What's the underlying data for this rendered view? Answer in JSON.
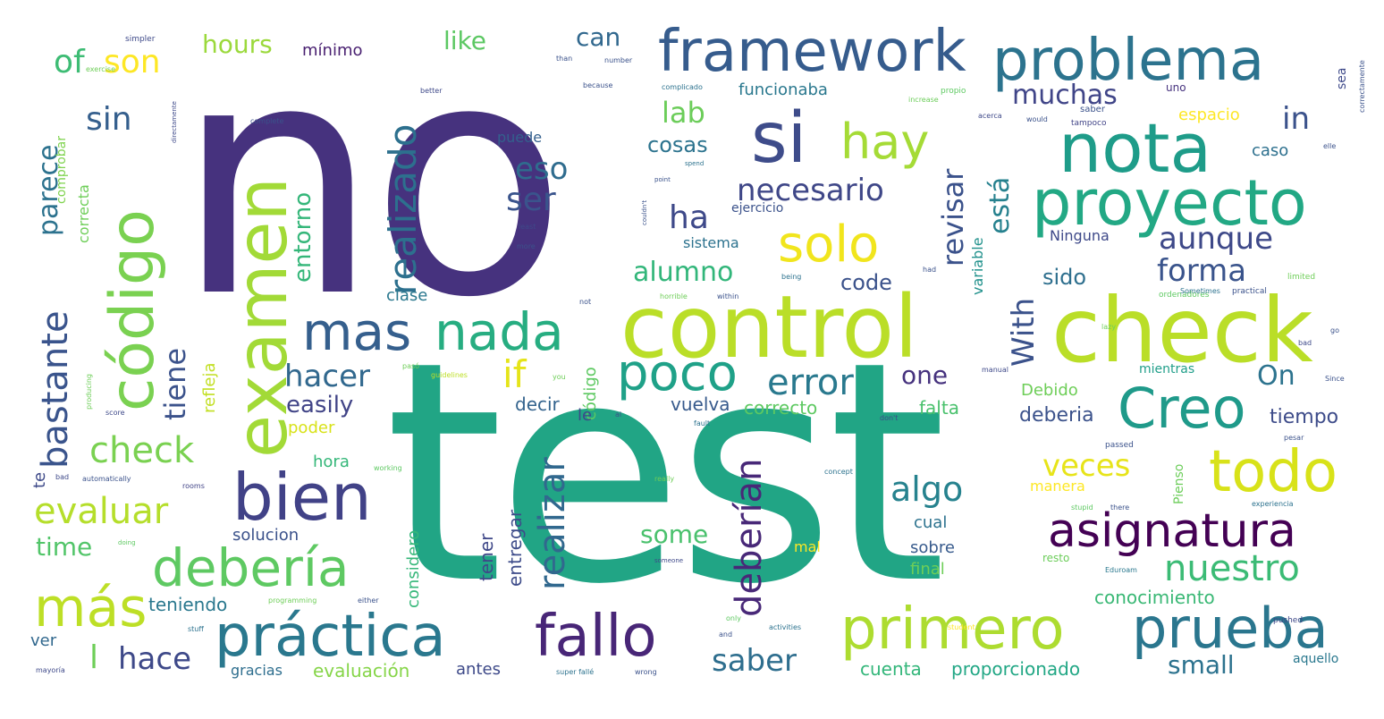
{
  "words": [
    {
      "text": "no",
      "color": "#46327e"
    },
    {
      "text": "test",
      "color": "#21a585"
    },
    {
      "text": "control",
      "color": "#bade28"
    },
    {
      "text": "check",
      "color": "#bade28"
    },
    {
      "text": "examen",
      "color": "#a2da37"
    },
    {
      "text": "código",
      "color": "#7ad151"
    },
    {
      "text": "framework",
      "color": "#365c8d"
    },
    {
      "text": "problema",
      "color": "#2c738e"
    },
    {
      "text": "nota",
      "color": "#1e9c89"
    },
    {
      "text": "proyecto",
      "color": "#22a884"
    },
    {
      "text": "si",
      "color": "#3e4c8a"
    },
    {
      "text": "hay",
      "color": "#a5db36"
    },
    {
      "text": "solo",
      "color": "#f1e51d"
    },
    {
      "text": "bien",
      "color": "#414287"
    },
    {
      "text": "mas",
      "color": "#355f8d"
    },
    {
      "text": "nada",
      "color": "#27ad81"
    },
    {
      "text": "poco",
      "color": "#1fa188"
    },
    {
      "text": "Creo",
      "color": "#1f9a8a"
    },
    {
      "text": "todo",
      "color": "#d8e219"
    },
    {
      "text": "asignatura",
      "color": "#440154"
    },
    {
      "text": "debería",
      "color": "#5ec962"
    },
    {
      "text": "más",
      "color": "#bddf26"
    },
    {
      "text": "práctica",
      "color": "#2a788e"
    },
    {
      "text": "fallo",
      "color": "#482677"
    },
    {
      "text": "primero",
      "color": "#addc30"
    },
    {
      "text": "prueba",
      "color": "#2a768e"
    },
    {
      "text": "nuestro",
      "color": "#3bbb75"
    },
    {
      "text": "evaluar",
      "color": "#b5de2b"
    },
    {
      "text": "check",
      "color": "#7ad151"
    },
    {
      "text": "realizado",
      "color": "#2d708e"
    },
    {
      "text": "realizar",
      "color": "#31688e"
    },
    {
      "text": "deberían",
      "color": "#482878"
    },
    {
      "text": "bastante",
      "color": "#3a548c"
    },
    {
      "text": "parece",
      "color": "#2c728e"
    },
    {
      "text": "tiene",
      "color": "#3b528b"
    },
    {
      "text": "muchas",
      "color": "#404588"
    },
    {
      "text": "aunque",
      "color": "#3e4989"
    },
    {
      "text": "forma",
      "color": "#3a548c"
    },
    {
      "text": "error",
      "color": "#29798e"
    },
    {
      "text": "hacer",
      "color": "#31688e"
    },
    {
      "text": "algo",
      "color": "#26828e"
    },
    {
      "text": "veces",
      "color": "#e7e419"
    },
    {
      "text": "alumno",
      "color": "#32b67a"
    },
    {
      "text": "necesario",
      "color": "#3f4788"
    },
    {
      "text": "ser",
      "color": "#3a548c"
    },
    {
      "text": "eso",
      "color": "#2f6c8e"
    },
    {
      "text": "lab",
      "color": "#6ccd5a"
    },
    {
      "text": "sin",
      "color": "#355f8d"
    },
    {
      "text": "of",
      "color": "#3dbc74"
    },
    {
      "text": "son",
      "color": "#fde725"
    },
    {
      "text": "hours",
      "color": "#9bd93c"
    },
    {
      "text": "like",
      "color": "#5cc863"
    },
    {
      "text": "can",
      "color": "#31688e"
    },
    {
      "text": "in",
      "color": "#3b528b"
    },
    {
      "text": "ha",
      "color": "#3e4989"
    },
    {
      "text": "if",
      "color": "#e5e419"
    },
    {
      "text": "saber",
      "color": "#2e6e8e"
    },
    {
      "text": "small",
      "color": "#2c728e"
    },
    {
      "text": "some",
      "color": "#4ac16d"
    },
    {
      "text": "With",
      "color": "#3b528b"
    },
    {
      "text": "revisar",
      "color": "#3b528b"
    },
    {
      "text": "está",
      "color": "#26818e"
    },
    {
      "text": "hace",
      "color": "#3e4989"
    },
    {
      "text": "l",
      "color": "#6ece58"
    },
    {
      "text": "time",
      "color": "#52c569"
    },
    {
      "text": "On",
      "color": "#2c738e"
    },
    {
      "text": "one",
      "color": "#46327e"
    },
    {
      "text": "tiempo",
      "color": "#3e4c8a"
    },
    {
      "text": "deberia",
      "color": "#3b528b"
    },
    {
      "text": "easily",
      "color": "#414487"
    },
    {
      "text": "entorno",
      "color": "#34b679"
    },
    {
      "text": "cosas",
      "color": "#2c738e"
    },
    {
      "text": "code",
      "color": "#3b528b"
    },
    {
      "text": "sido",
      "color": "#2e6f8e"
    },
    {
      "text": "mínimo",
      "color": "#481f70"
    },
    {
      "text": "teniendo",
      "color": "#2a788e"
    },
    {
      "text": "ver",
      "color": "#31688e"
    },
    {
      "text": "evaluación",
      "color": "#86d549"
    },
    {
      "text": "antes",
      "color": "#3e4a89"
    },
    {
      "text": "cuenta",
      "color": "#33b67a"
    },
    {
      "text": "proporcionado",
      "color": "#22a785"
    },
    {
      "text": "conocimiento",
      "color": "#3ab875"
    },
    {
      "text": "solucion",
      "color": "#3b528b"
    },
    {
      "text": "entregar",
      "color": "#3e4c8a"
    },
    {
      "text": "tener",
      "color": "#3f4889"
    },
    {
      "text": "decir",
      "color": "#33638d"
    },
    {
      "text": "vuelva",
      "color": "#375a8c"
    },
    {
      "text": "correcto",
      "color": "#5ec962"
    },
    {
      "text": "falta",
      "color": "#4ac16d"
    },
    {
      "text": "Debido",
      "color": "#6ece58"
    },
    {
      "text": "hora",
      "color": "#35b779"
    },
    {
      "text": "poder",
      "color": "#d8e219"
    },
    {
      "text": "funcionaba",
      "color": "#2a788e"
    },
    {
      "text": "puede",
      "color": "#34608d"
    },
    {
      "text": "espacio",
      "color": "#fde725"
    },
    {
      "text": "caso",
      "color": "#2d708e"
    },
    {
      "text": "Ninguna",
      "color": "#3e4989"
    },
    {
      "text": "clase",
      "color": "#2a788e"
    },
    {
      "text": "sistema",
      "color": "#2c728e"
    },
    {
      "text": "ejercicio",
      "color": "#3b528b"
    },
    {
      "text": "correcta",
      "color": "#6ece58"
    },
    {
      "text": "comprobar",
      "color": "#7fd34e"
    },
    {
      "text": "refleja",
      "color": "#c2df23"
    },
    {
      "text": "código",
      "color": "#5ec962"
    },
    {
      "text": "considero",
      "color": "#35b779"
    },
    {
      "text": "cual",
      "color": "#2c728e"
    },
    {
      "text": "sobre",
      "color": "#375a8c"
    },
    {
      "text": "final",
      "color": "#6ece58"
    },
    {
      "text": "mal",
      "color": "#fde725"
    },
    {
      "text": "manera",
      "color": "#fde725"
    },
    {
      "text": "le",
      "color": "#3e4989"
    },
    {
      "text": "te",
      "color": "#3e4a89"
    },
    {
      "text": "gracias",
      "color": "#2e6e8e"
    },
    {
      "text": "variable",
      "color": "#21918c"
    },
    {
      "text": "sea",
      "color": "#3e4989"
    },
    {
      "text": "Pienso",
      "color": "#6ccd5a"
    },
    {
      "text": "resto",
      "color": "#6ccd5a"
    },
    {
      "text": "aquello",
      "color": "#2a788e"
    },
    {
      "text": "mientras",
      "color": "#1f9e89"
    },
    {
      "text": "simpler",
      "color": "#3e4989"
    },
    {
      "text": "better",
      "color": "#3e4989"
    },
    {
      "text": "uno",
      "color": "#46327e"
    },
    {
      "text": "saber",
      "color": "#3b528b"
    },
    {
      "text": "propio",
      "color": "#5ec962"
    },
    {
      "text": "because",
      "color": "#3b528b"
    },
    {
      "text": "complicado",
      "color": "#2c728e"
    },
    {
      "text": "increase",
      "color": "#6ccd5a"
    },
    {
      "text": "tampoco",
      "color": "#414487"
    },
    {
      "text": "correctamente",
      "color": "#3b528b"
    },
    {
      "text": "ordenadores",
      "color": "#5ec962"
    },
    {
      "text": "practical",
      "color": "#3b528b"
    },
    {
      "text": "limited",
      "color": "#6ece58"
    },
    {
      "text": "Sometimes",
      "color": "#2c728e"
    },
    {
      "text": "horrible",
      "color": "#6ece58"
    },
    {
      "text": "within",
      "color": "#3b528b"
    },
    {
      "text": "producing",
      "color": "#6ece58"
    },
    {
      "text": "score",
      "color": "#3e4989"
    },
    {
      "text": "guidelines",
      "color": "#bddf26"
    },
    {
      "text": "mayoría",
      "color": "#3e4989"
    },
    {
      "text": "super fallé",
      "color": "#2c728e"
    },
    {
      "text": "wrong",
      "color": "#3b528b"
    },
    {
      "text": "activities",
      "color": "#2c728e"
    },
    {
      "text": "student",
      "color": "#fde725"
    },
    {
      "text": "pushed",
      "color": "#3e4989"
    },
    {
      "text": "passed",
      "color": "#3b528b"
    },
    {
      "text": "experiencia",
      "color": "#2c728e"
    },
    {
      "text": "Eduroam",
      "color": "#2a788e"
    },
    {
      "text": "stupid",
      "color": "#5ec962"
    },
    {
      "text": "there",
      "color": "#3b528b"
    },
    {
      "text": "concept",
      "color": "#2c728e"
    },
    {
      "text": "really",
      "color": "#6ece58"
    },
    {
      "text": "someone",
      "color": "#3e4989"
    },
    {
      "text": "doing",
      "color": "#5ec962"
    },
    {
      "text": "automatically",
      "color": "#3b528b"
    },
    {
      "text": "bad",
      "color": "#3e4989"
    },
    {
      "text": "rooms",
      "color": "#414487"
    },
    {
      "text": "working",
      "color": "#5ec962"
    },
    {
      "text": "stuff",
      "color": "#2c728e"
    },
    {
      "text": "either",
      "color": "#3b528b"
    },
    {
      "text": "only",
      "color": "#5ec962"
    },
    {
      "text": "programming",
      "color": "#6ece58"
    },
    {
      "text": "exercise",
      "color": "#6ece58"
    },
    {
      "text": "directamente",
      "color": "#3e4989"
    },
    {
      "text": "complete",
      "color": "#3b528b"
    },
    {
      "text": "than",
      "color": "#3b528b"
    },
    {
      "text": "number",
      "color": "#3b528b"
    },
    {
      "text": "acerca",
      "color": "#3e4989"
    },
    {
      "text": "would",
      "color": "#3b528b"
    },
    {
      "text": "spend",
      "color": "#2c728e"
    },
    {
      "text": "point",
      "color": "#3b528b"
    },
    {
      "text": "couldn't",
      "color": "#3b528b"
    },
    {
      "text": "least",
      "color": "#3e4989"
    },
    {
      "text": "more",
      "color": "#3b528b"
    },
    {
      "text": "being",
      "color": "#2c728e"
    },
    {
      "text": "had",
      "color": "#3b528b"
    },
    {
      "text": "lazy",
      "color": "#6ece58"
    },
    {
      "text": "manual",
      "color": "#3e4989"
    },
    {
      "text": "fault",
      "color": "#2c728e"
    },
    {
      "text": "don't",
      "color": "#3e4989"
    },
    {
      "text": "pasó",
      "color": "#6ece58"
    },
    {
      "text": "you",
      "color": "#6ece58"
    },
    {
      "text": "al",
      "color": "#3b528b"
    },
    {
      "text": "not",
      "color": "#3b528b"
    },
    {
      "text": "and",
      "color": "#3b528b"
    },
    {
      "text": "elle",
      "color": "#3b528b"
    },
    {
      "text": "pesar",
      "color": "#3b528b"
    },
    {
      "text": "go",
      "color": "#3b528b"
    },
    {
      "text": "bad",
      "color": "#3e4989"
    },
    {
      "text": "Since",
      "color": "#3b528b"
    }
  ]
}
